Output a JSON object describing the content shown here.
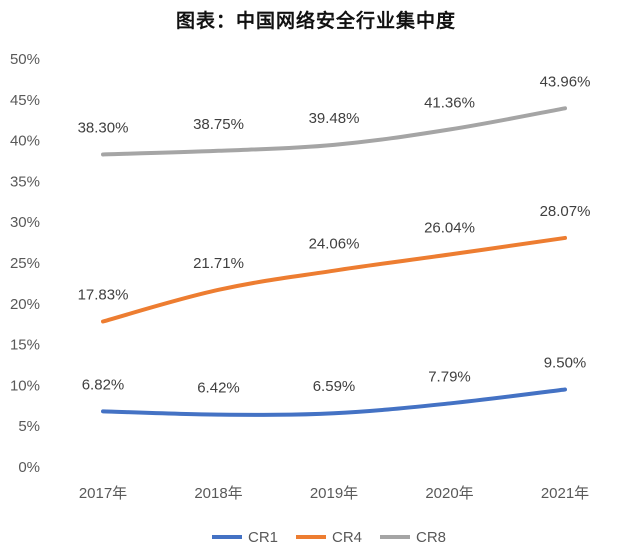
{
  "chart_data": {
    "type": "line",
    "title": "图表：中国网络安全行业集中度",
    "xlabel": "",
    "ylabel": "",
    "categories": [
      "2017年",
      "2018年",
      "2019年",
      "2020年",
      "2021年"
    ],
    "ylim": [
      0,
      50
    ],
    "yticks": [
      "0%",
      "5%",
      "10%",
      "15%",
      "20%",
      "25%",
      "30%",
      "35%",
      "40%",
      "45%",
      "50%"
    ],
    "grid": false,
    "legend": "bottom",
    "series": [
      {
        "name": "CR1",
        "color": "#4472C4",
        "values": [
          6.82,
          6.42,
          6.59,
          7.79,
          9.5
        ],
        "labels": [
          "6.82%",
          "6.42%",
          "6.59%",
          "7.79%",
          "9.50%"
        ]
      },
      {
        "name": "CR4",
        "color": "#ED7D31",
        "values": [
          17.83,
          21.71,
          24.06,
          26.04,
          28.07
        ],
        "labels": [
          "17.83%",
          "21.71%",
          "24.06%",
          "26.04%",
          "28.07%"
        ]
      },
      {
        "name": "CR8",
        "color": "#A5A5A5",
        "values": [
          38.3,
          38.75,
          39.48,
          41.36,
          43.96
        ],
        "labels": [
          "38.30%",
          "38.75%",
          "39.48%",
          "41.36%",
          "43.96%"
        ]
      }
    ]
  }
}
